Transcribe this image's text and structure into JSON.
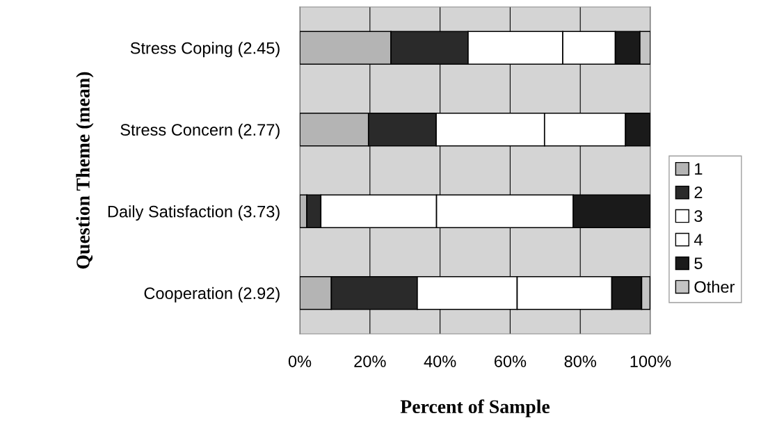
{
  "chart_data": {
    "type": "bar",
    "orientation": "horizontal",
    "stacked": true,
    "xlabel": "Percent of Sample",
    "ylabel": "Question Theme (mean)",
    "categories": [
      "Stress Coping (2.45)",
      "Stress Concern (2.77)",
      "Daily Satisfaction (3.73)",
      "Cooperation (2.92)"
    ],
    "series": [
      {
        "name": "1",
        "color": "#b4b4b4",
        "values": [
          26,
          19.6,
          2,
          9
        ]
      },
      {
        "name": "2",
        "color": "#2a2a2a",
        "values": [
          22,
          19.3,
          4,
          24.5
        ]
      },
      {
        "name": "3",
        "color": "#ffffff",
        "values": [
          27,
          30.9,
          33,
          28.5
        ]
      },
      {
        "name": "4",
        "color": "#ffffff",
        "values": [
          15,
          23.1,
          39,
          27
        ]
      },
      {
        "name": "5",
        "color": "#1a1a1a",
        "values": [
          7,
          7.1,
          22,
          8.5
        ]
      },
      {
        "name": "Other",
        "color": "#c4c4c4",
        "values": [
          3,
          null,
          null,
          2.4
        ]
      }
    ],
    "xlim": [
      0,
      100
    ],
    "xticks": [
      {
        "value": 0,
        "label": "0%"
      },
      {
        "value": 20,
        "label": "20%"
      },
      {
        "value": 40,
        "label": "40%"
      },
      {
        "value": 60,
        "label": "60%"
      },
      {
        "value": 80,
        "label": "80%"
      },
      {
        "value": 100,
        "label": "100%"
      }
    ],
    "grid": "x",
    "legend": "right"
  }
}
